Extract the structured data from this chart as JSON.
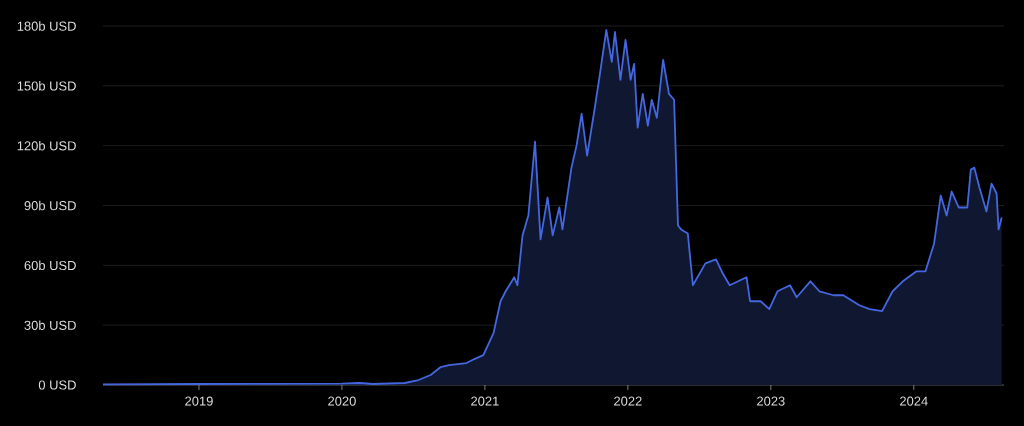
{
  "chart_data": {
    "type": "area",
    "color": "#4467e0",
    "x": [
      "2018-05-01",
      "2019-01-01",
      "2019-07-01",
      "2020-01-01",
      "2020-02-15",
      "2020-03-20",
      "2020-06-10",
      "2020-07-15",
      "2020-08-15",
      "2020-09-10",
      "2020-10-01",
      "2020-11-15",
      "2020-12-05",
      "2020-12-28",
      "2021-01-23",
      "2021-02-10",
      "2021-02-23",
      "2021-03-17",
      "2021-03-25",
      "2021-04-07",
      "2021-04-22",
      "2021-05-09",
      "2021-05-23",
      "2021-06-10",
      "2021-06-23",
      "2021-07-10",
      "2021-07-18",
      "2021-08-10",
      "2021-08-23",
      "2021-09-05",
      "2021-09-19",
      "2021-10-07",
      "2021-10-21",
      "2021-11-07",
      "2021-11-21",
      "2021-11-29",
      "2021-12-13",
      "2021-12-26",
      "2022-01-08",
      "2022-01-17",
      "2022-01-26",
      "2022-02-08",
      "2022-02-21",
      "2022-03-03",
      "2022-03-16",
      "2022-04-01",
      "2022-04-16",
      "2022-04-29",
      "2022-05-09",
      "2022-05-17",
      "2022-06-03",
      "2022-06-16",
      "2022-07-18",
      "2022-08-14",
      "2022-08-31",
      "2022-09-18",
      "2022-10-31",
      "2022-11-09",
      "2022-12-06",
      "2022-12-28",
      "2023-01-18",
      "2023-02-19",
      "2023-03-08",
      "2023-04-12",
      "2023-05-05",
      "2023-06-10",
      "2023-07-05",
      "2023-08-15",
      "2023-09-10",
      "2023-10-12",
      "2023-11-08",
      "2023-12-04",
      "2024-01-08",
      "2024-01-31",
      "2024-02-22",
      "2024-03-10",
      "2024-03-25",
      "2024-04-07",
      "2024-04-25",
      "2024-05-17",
      "2024-05-26",
      "2024-06-04",
      "2024-06-17",
      "2024-07-05",
      "2024-07-18",
      "2024-07-31",
      "2024-08-05",
      "2024-08-13"
    ],
    "values": [
      0.3,
      0.5,
      0.6,
      0.7,
      1.0,
      0.5,
      1.0,
      2.5,
      5,
      9,
      10,
      11,
      13,
      15,
      26,
      42,
      47,
      54,
      50,
      75,
      85,
      122,
      73,
      94,
      75,
      89,
      78,
      109,
      120,
      136,
      115,
      137,
      155,
      178,
      162,
      177,
      153,
      173,
      153,
      161,
      129,
      146,
      130,
      143,
      134,
      163,
      146,
      143,
      80,
      78,
      76,
      50,
      61,
      63,
      56,
      50,
      54,
      42,
      42,
      38,
      47,
      50,
      44,
      52,
      47,
      45,
      45,
      40,
      38,
      37,
      47,
      52,
      57,
      57,
      71,
      95,
      85,
      97,
      89,
      89,
      108,
      109,
      99,
      87,
      101,
      96,
      78,
      84
    ],
    "xlim": [
      "2018-05-01",
      "2024-08-19"
    ],
    "xticks": [
      "2019",
      "2020",
      "2021",
      "2022",
      "2023",
      "2024"
    ],
    "ylim": [
      0,
      180
    ],
    "yticks": [
      {
        "value": 0,
        "label": "0 USD"
      },
      {
        "value": 30,
        "label": "30b USD"
      },
      {
        "value": 60,
        "label": "60b USD"
      },
      {
        "value": 90,
        "label": "90b USD"
      },
      {
        "value": 120,
        "label": "120b USD"
      },
      {
        "value": 150,
        "label": "150b USD"
      },
      {
        "value": 180,
        "label": "180b USD"
      }
    ],
    "grid": "y",
    "marker": "none",
    "line_style": "solid"
  }
}
